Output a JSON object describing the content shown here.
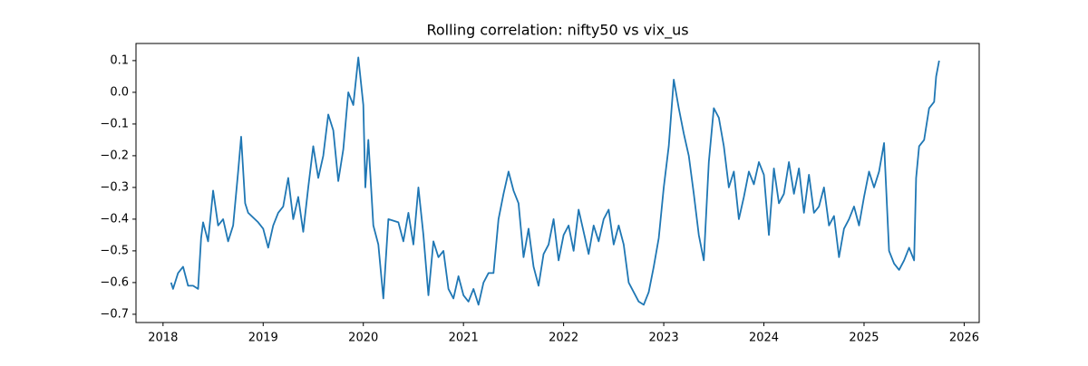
{
  "chart_data": {
    "type": "line",
    "title": "Rolling correlation: nifty50 vs vix_us",
    "x": [
      2018.08,
      2018.1,
      2018.15,
      2018.2,
      2018.25,
      2018.3,
      2018.35,
      2018.38,
      2018.4,
      2018.45,
      2018.5,
      2018.55,
      2018.6,
      2018.65,
      2018.7,
      2018.75,
      2018.78,
      2018.82,
      2018.85,
      2018.95,
      2019.0,
      2019.05,
      2019.1,
      2019.15,
      2019.2,
      2019.25,
      2019.3,
      2019.35,
      2019.4,
      2019.45,
      2019.5,
      2019.55,
      2019.6,
      2019.65,
      2019.7,
      2019.75,
      2019.8,
      2019.85,
      2019.9,
      2019.95,
      2020.0,
      2020.02,
      2020.05,
      2020.1,
      2020.15,
      2020.2,
      2020.25,
      2020.35,
      2020.4,
      2020.45,
      2020.5,
      2020.55,
      2020.6,
      2020.65,
      2020.7,
      2020.75,
      2020.8,
      2020.85,
      2020.9,
      2020.95,
      2021.0,
      2021.05,
      2021.1,
      2021.15,
      2021.2,
      2021.25,
      2021.3,
      2021.35,
      2021.4,
      2021.45,
      2021.5,
      2021.55,
      2021.6,
      2021.65,
      2021.7,
      2021.75,
      2021.8,
      2021.85,
      2021.9,
      2021.95,
      2022.0,
      2022.05,
      2022.1,
      2022.15,
      2022.2,
      2022.25,
      2022.3,
      2022.35,
      2022.4,
      2022.45,
      2022.5,
      2022.55,
      2022.6,
      2022.65,
      2022.7,
      2022.75,
      2022.8,
      2022.85,
      2022.9,
      2022.95,
      2023.0,
      2023.05,
      2023.1,
      2023.15,
      2023.2,
      2023.25,
      2023.3,
      2023.35,
      2023.4,
      2023.45,
      2023.5,
      2023.55,
      2023.6,
      2023.65,
      2023.7,
      2023.75,
      2023.8,
      2023.85,
      2023.9,
      2023.95,
      2024.0,
      2024.05,
      2024.1,
      2024.15,
      2024.2,
      2024.25,
      2024.3,
      2024.35,
      2024.4,
      2024.45,
      2024.5,
      2024.55,
      2024.6,
      2024.65,
      2024.7,
      2024.75,
      2024.8,
      2024.85,
      2024.9,
      2024.95,
      2025.0,
      2025.05,
      2025.1,
      2025.15,
      2025.2,
      2025.25,
      2025.3,
      2025.35,
      2025.4,
      2025.45,
      2025.5,
      2025.52,
      2025.55,
      2025.6,
      2025.65,
      2025.7,
      2025.72,
      2025.75
    ],
    "series": [
      {
        "color": "#1f77b4",
        "values": [
          -0.6,
          -0.62,
          -0.57,
          -0.55,
          -0.61,
          -0.61,
          -0.62,
          -0.46,
          -0.41,
          -0.47,
          -0.31,
          -0.42,
          -0.4,
          -0.47,
          -0.42,
          -0.25,
          -0.14,
          -0.35,
          -0.38,
          -0.41,
          -0.43,
          -0.49,
          -0.42,
          -0.38,
          -0.36,
          -0.27,
          -0.4,
          -0.33,
          -0.44,
          -0.3,
          -0.17,
          -0.27,
          -0.2,
          -0.07,
          -0.12,
          -0.28,
          -0.18,
          0.0,
          -0.04,
          0.11,
          -0.04,
          -0.3,
          -0.15,
          -0.42,
          -0.48,
          -0.65,
          -0.4,
          -0.41,
          -0.47,
          -0.38,
          -0.48,
          -0.3,
          -0.45,
          -0.64,
          -0.47,
          -0.52,
          -0.5,
          -0.62,
          -0.65,
          -0.58,
          -0.64,
          -0.66,
          -0.62,
          -0.67,
          -0.6,
          -0.57,
          -0.57,
          -0.4,
          -0.32,
          -0.25,
          -0.31,
          -0.35,
          -0.52,
          -0.43,
          -0.55,
          -0.61,
          -0.51,
          -0.48,
          -0.4,
          -0.53,
          -0.45,
          -0.42,
          -0.5,
          -0.37,
          -0.44,
          -0.51,
          -0.42,
          -0.47,
          -0.4,
          -0.37,
          -0.48,
          -0.42,
          -0.48,
          -0.6,
          -0.63,
          -0.66,
          -0.67,
          -0.63,
          -0.55,
          -0.46,
          -0.3,
          -0.17,
          0.04,
          -0.05,
          -0.13,
          -0.2,
          -0.32,
          -0.45,
          -0.53,
          -0.22,
          -0.05,
          -0.08,
          -0.17,
          -0.3,
          -0.25,
          -0.4,
          -0.33,
          -0.25,
          -0.29,
          -0.22,
          -0.26,
          -0.45,
          -0.24,
          -0.35,
          -0.32,
          -0.22,
          -0.32,
          -0.24,
          -0.38,
          -0.26,
          -0.38,
          -0.36,
          -0.3,
          -0.42,
          -0.39,
          -0.52,
          -0.43,
          -0.4,
          -0.36,
          -0.42,
          -0.33,
          -0.25,
          -0.3,
          -0.25,
          -0.16,
          -0.5,
          -0.54,
          -0.56,
          -0.53,
          -0.49,
          -0.53,
          -0.27,
          -0.17,
          -0.15,
          -0.05,
          -0.03,
          0.05,
          0.1
        ]
      }
    ],
    "xlim": [
      2017.73,
      2026.15
    ],
    "xticks": [
      2018,
      2019,
      2020,
      2021,
      2022,
      2023,
      2024,
      2025,
      2026
    ],
    "ylim": [
      -0.726,
      0.154
    ],
    "yticks": [
      {
        "value": -0.7,
        "label": "−0.7"
      },
      {
        "value": -0.6,
        "label": "−0.6"
      },
      {
        "value": -0.5,
        "label": "−0.5"
      },
      {
        "value": -0.4,
        "label": "−0.4"
      },
      {
        "value": -0.3,
        "label": "−0.3"
      },
      {
        "value": -0.2,
        "label": "−0.2"
      },
      {
        "value": -0.1,
        "label": "−0.1"
      },
      {
        "value": 0,
        "label": "0.0"
      },
      0.1
    ]
  }
}
